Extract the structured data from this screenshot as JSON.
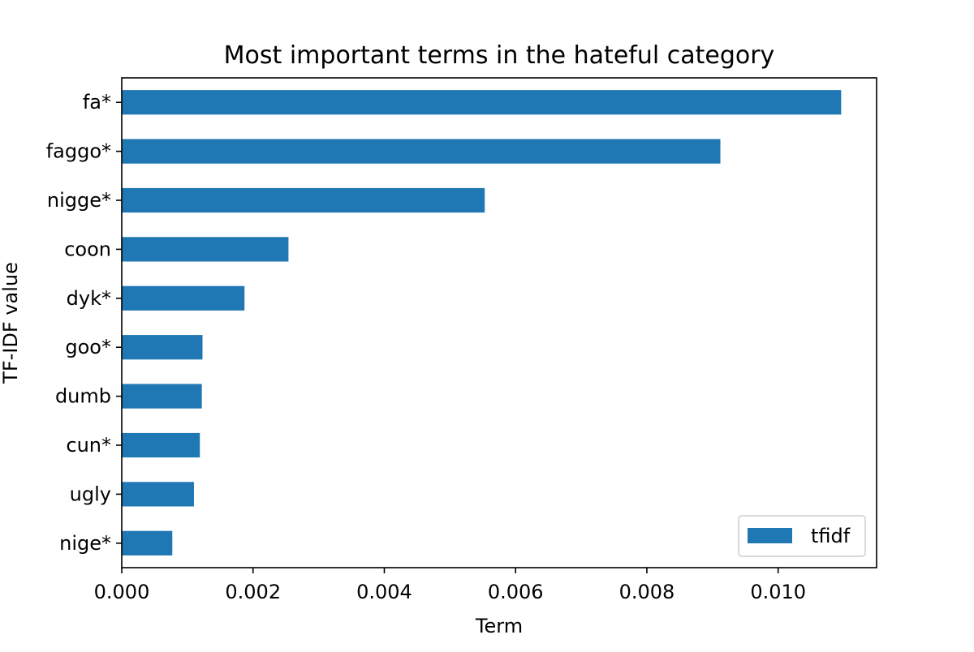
{
  "chart_data": {
    "type": "bar",
    "orientation": "horizontal",
    "title": "Most important terms in the hateful category",
    "xlabel": "Term",
    "ylabel": "TF-IDF value",
    "xlim": [
      0,
      0.0115
    ],
    "x_ticks": [
      "0.000",
      "0.002",
      "0.004",
      "0.006",
      "0.008",
      "0.010"
    ],
    "x_tick_values": [
      0,
      0.002,
      0.004,
      0.006,
      0.008,
      0.01
    ],
    "categories": [
      "fa*",
      "faggo*",
      "nigge*",
      "coon",
      "dyk*",
      "goo*",
      "dumb",
      "cun*",
      "ugly",
      "nige*"
    ],
    "series": [
      {
        "name": "tfidf",
        "color": "#1f77b4",
        "values": [
          0.01096,
          0.00912,
          0.00553,
          0.00254,
          0.00187,
          0.00123,
          0.00122,
          0.00119,
          0.0011,
          0.00077
        ]
      }
    ],
    "legend_position": "bottom-right",
    "grid": false
  }
}
